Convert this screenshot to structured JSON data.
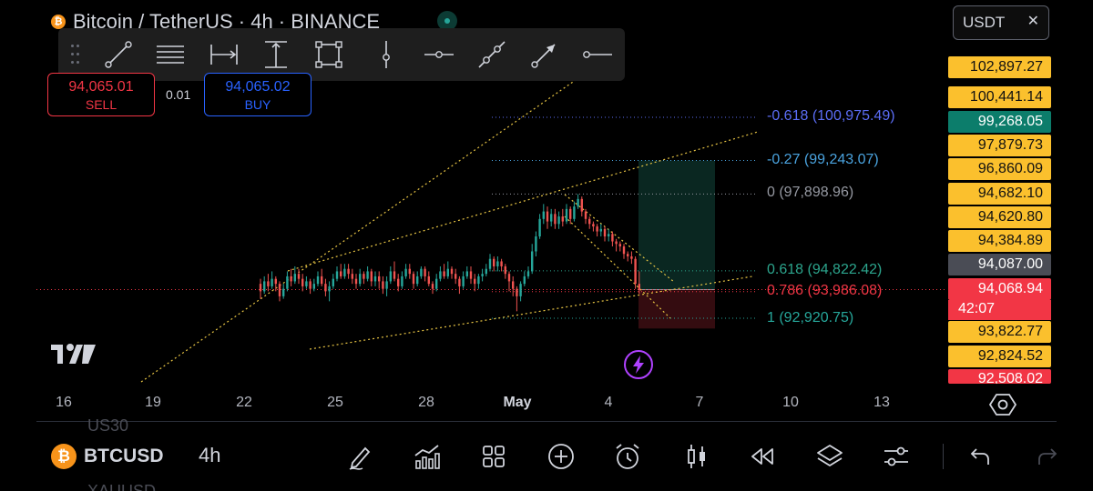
{
  "header": {
    "title": "Bitcoin / TetherUS · 4h · BINANCE",
    "currency": "USDT",
    "currency_arrow": "✕"
  },
  "trade": {
    "sell_price": "94,065.01",
    "sell_label": "SELL",
    "spread": "0.01",
    "buy_price": "94,065.02",
    "buy_label": "BUY"
  },
  "drawing_toolbar": {
    "tools": [
      "trend-line-icon",
      "parallel-channel-icon",
      "date-range-icon",
      "price-range-icon",
      "rectangle-icon",
      "vertical-line-icon",
      "horizontal-ray-icon",
      "info-line-icon",
      "arrow-icon",
      "horizontal-line-icon"
    ]
  },
  "fib_levels": [
    {
      "label": "-0.618 (100,975.49)",
      "price": 100975.49,
      "color": "#5b6df5"
    },
    {
      "label": "-0.27 (99,243.07)",
      "price": 99243.07,
      "color": "#4aa3df"
    },
    {
      "label": "0 (97,898.96)",
      "price": 97898.96,
      "color": "#9598a1"
    },
    {
      "label": "0.618 (94,822.42)",
      "price": 94822.42,
      "color": "#2ca58d"
    },
    {
      "label": "0.786 (93,986.08)",
      "price": 93986.08,
      "color": "#f23645"
    },
    {
      "label": "1 (92,920.75)",
      "price": 92920.75,
      "color": "#26a69a"
    }
  ],
  "price_axis": {
    "labels": [
      {
        "text": "102,897.27",
        "style": "yellow"
      },
      {
        "text": "100,441.14",
        "style": "yellow"
      },
      {
        "text": "99,268.05",
        "style": "teal"
      },
      {
        "text": "97,879.73",
        "style": "yellow"
      },
      {
        "text": "96,860.09",
        "style": "yellow"
      },
      {
        "text": "94,682.10",
        "style": "yellow"
      },
      {
        "text": "94,620.80",
        "style": "yellow"
      },
      {
        "text": "94,384.89",
        "style": "yellow"
      },
      {
        "text": "94,087.00",
        "style": "grey"
      },
      {
        "text": "94,068.94",
        "style": "red"
      },
      {
        "text": "93,822.77",
        "style": "yellow"
      },
      {
        "text": "92,824.52",
        "style": "yellow"
      },
      {
        "text": "92,508.02",
        "style": "red"
      }
    ],
    "countdown": "42:07"
  },
  "time_axis": {
    "ticks": [
      {
        "text": "16",
        "bold": false
      },
      {
        "text": "19",
        "bold": false
      },
      {
        "text": "22",
        "bold": false
      },
      {
        "text": "25",
        "bold": false
      },
      {
        "text": "28",
        "bold": false
      },
      {
        "text": "May",
        "bold": true
      },
      {
        "text": "4",
        "bold": false
      },
      {
        "text": "7",
        "bold": false
      },
      {
        "text": "10",
        "bold": false
      },
      {
        "text": "13",
        "bold": false
      }
    ]
  },
  "chart_data": {
    "type": "candlestick",
    "symbol": "BTCUSDT",
    "interval": "4h",
    "last_price": 94068.94,
    "candles": [
      [
        94300,
        94000,
        94500,
        93700
      ],
      [
        94000,
        94400,
        94600,
        93900
      ],
      [
        94400,
        94200,
        94700,
        94000
      ],
      [
        94200,
        94500,
        94800,
        94100
      ],
      [
        94500,
        94300,
        94600,
        94000
      ],
      [
        94300,
        93800,
        94400,
        93600
      ],
      [
        93800,
        94100,
        94300,
        93700
      ],
      [
        94100,
        94600,
        94800,
        94000
      ],
      [
        94600,
        94400,
        94900,
        94200
      ],
      [
        94400,
        94700,
        95000,
        94300
      ],
      [
        94700,
        94500,
        94900,
        94300
      ],
      [
        94500,
        94200,
        94700,
        94000
      ],
      [
        94200,
        94400,
        94600,
        94100
      ],
      [
        94400,
        94100,
        94500,
        93900
      ],
      [
        94100,
        94300,
        94500,
        94000
      ],
      [
        94300,
        94600,
        94800,
        94200
      ],
      [
        94600,
        94300,
        94900,
        94200
      ],
      [
        94300,
        94000,
        94500,
        93800
      ],
      [
        94000,
        94200,
        94400,
        93600
      ],
      [
        94200,
        94500,
        94700,
        94100
      ],
      [
        94500,
        94800,
        95000,
        94400
      ],
      [
        94800,
        94600,
        95100,
        94500
      ],
      [
        94600,
        94900,
        95100,
        94500
      ],
      [
        94900,
        94700,
        95100,
        94500
      ],
      [
        94700,
        94500,
        94900,
        94300
      ],
      [
        94500,
        94300,
        94700,
        94100
      ],
      [
        94300,
        94700,
        94900,
        94200
      ],
      [
        94700,
        94500,
        94800,
        94300
      ],
      [
        94500,
        94800,
        95000,
        94400
      ],
      [
        94800,
        94400,
        94900,
        94200
      ],
      [
        94400,
        94600,
        94800,
        94200
      ],
      [
        94600,
        94400,
        94800,
        94100
      ],
      [
        94400,
        94100,
        94600,
        93900
      ],
      [
        94100,
        94400,
        94600,
        93800
      ],
      [
        94400,
        94800,
        95000,
        94300
      ],
      [
        94800,
        94500,
        95200,
        94400
      ],
      [
        94500,
        94200,
        94700,
        94000
      ],
      [
        94200,
        94600,
        94800,
        94100
      ],
      [
        94600,
        94900,
        95100,
        94500
      ],
      [
        94900,
        94700,
        95100,
        94500
      ],
      [
        94700,
        94300,
        94800,
        94100
      ],
      [
        94300,
        94600,
        94800,
        94200
      ],
      [
        94600,
        94900,
        95000,
        94500
      ],
      [
        94900,
        94600,
        95000,
        94400
      ],
      [
        94600,
        94300,
        94800,
        94200
      ],
      [
        94300,
        94100,
        94400,
        93900
      ],
      [
        94100,
        94500,
        94700,
        94000
      ],
      [
        94500,
        94800,
        95000,
        94400
      ],
      [
        94800,
        94600,
        95100,
        94500
      ],
      [
        94600,
        94900,
        95200,
        94500
      ],
      [
        94900,
        94700,
        95000,
        94500
      ],
      [
        94700,
        94500,
        94900,
        94300
      ],
      [
        94500,
        94200,
        94600,
        93900
      ],
      [
        94200,
        94600,
        94800,
        94100
      ],
      [
        94600,
        94800,
        95000,
        94500
      ],
      [
        94800,
        94500,
        95000,
        94300
      ],
      [
        94500,
        94300,
        94700,
        94000
      ],
      [
        94300,
        94600,
        94700,
        94100
      ],
      [
        94600,
        94700,
        94900,
        94400
      ],
      [
        94700,
        94900,
        95100,
        94600
      ],
      [
        94900,
        95300,
        95500,
        94800
      ],
      [
        95300,
        95000,
        95400,
        94800
      ],
      [
        95000,
        95200,
        95400,
        94800
      ],
      [
        95200,
        95000,
        95300,
        94800
      ],
      [
        95000,
        94700,
        95100,
        94500
      ],
      [
        94700,
        94400,
        94800,
        94000
      ],
      [
        94400,
        94100,
        94600,
        93800
      ],
      [
        94100,
        93800,
        94200,
        93200
      ],
      [
        93800,
        94300,
        94400,
        93600
      ],
      [
        94300,
        94600,
        94800,
        94200
      ],
      [
        94600,
        94800,
        95000,
        94500
      ],
      [
        94800,
        95600,
        95900,
        94700
      ],
      [
        95600,
        96200,
        96400,
        95400
      ],
      [
        96200,
        96900,
        97100,
        96100
      ],
      [
        96900,
        97200,
        97500,
        96700
      ],
      [
        97200,
        96800,
        97400,
        96500
      ],
      [
        96800,
        97100,
        97300,
        96600
      ],
      [
        97100,
        96700,
        97300,
        96500
      ],
      [
        96700,
        97000,
        97200,
        96500
      ],
      [
        97000,
        96800,
        97300,
        96600
      ],
      [
        96800,
        97300,
        97500,
        96700
      ],
      [
        97300,
        96900,
        97400,
        96700
      ],
      [
        96900,
        97400,
        97600,
        96800
      ],
      [
        97400,
        97700,
        97900,
        97300
      ],
      [
        97700,
        97200,
        97800,
        97000
      ],
      [
        97200,
        96900,
        97300,
        96700
      ],
      [
        96900,
        96700,
        97000,
        96500
      ],
      [
        96700,
        96600,
        96800,
        96400
      ],
      [
        96600,
        96400,
        96700,
        96200
      ],
      [
        96400,
        96500,
        96700,
        96200
      ],
      [
        96500,
        96200,
        96600,
        96000
      ],
      [
        96200,
        96300,
        96500,
        96000
      ],
      [
        96300,
        96000,
        96400,
        95800
      ],
      [
        96000,
        95900,
        96100,
        95600
      ],
      [
        95900,
        95800,
        96000,
        95600
      ],
      [
        95800,
        95500,
        95900,
        95300
      ],
      [
        95500,
        95400,
        95600,
        95200
      ],
      [
        95400,
        95300,
        95600,
        95100
      ],
      [
        95300,
        94300,
        95400,
        94100
      ],
      [
        94300,
        94069,
        94800,
        93900
      ]
    ]
  },
  "bottom_bar": {
    "symbol": "BTCUSD",
    "interval": "4h",
    "ghost_top": "US30",
    "ghost_bottom": "XAUUSD",
    "icons": [
      "pencil-icon",
      "indicators-icon",
      "layouts-icon",
      "add-icon",
      "alert-icon",
      "chart-type-icon",
      "replay-icon",
      "layers-icon",
      "settings-sliders-icon",
      "undo-icon",
      "redo-icon"
    ]
  }
}
